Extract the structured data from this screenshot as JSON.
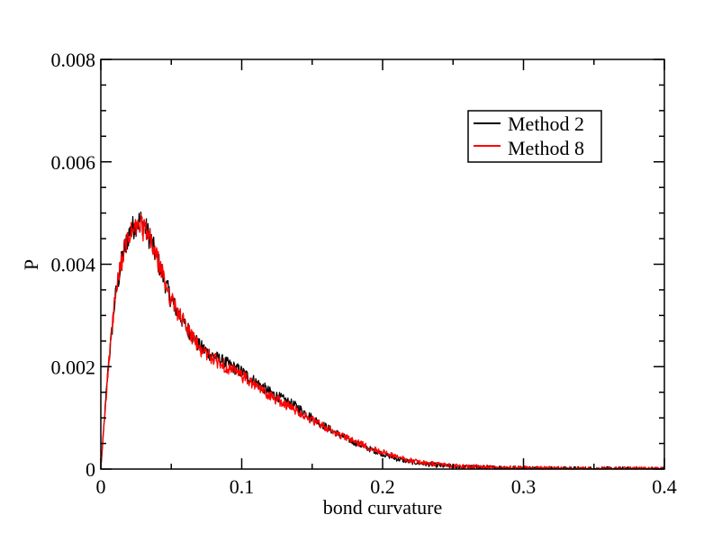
{
  "chart_data": {
    "type": "line",
    "xlabel": "bond curvature",
    "ylabel": "P",
    "xlim": [
      0,
      0.4
    ],
    "ylim": [
      0,
      0.008
    ],
    "x_ticks": [
      "0",
      "0.1",
      "0.2",
      "0.3",
      "0.4"
    ],
    "x_tick_values": [
      0,
      0.1,
      0.2,
      0.3,
      0.4
    ],
    "y_ticks": [
      "0",
      "0.002",
      "0.004",
      "0.006",
      "0.008"
    ],
    "y_tick_values": [
      0,
      0.002,
      0.004,
      0.006,
      0.008
    ],
    "legend_position": "top-right",
    "grid": false,
    "series": [
      {
        "name": "Method 2",
        "color": "#000000",
        "x": [
          0,
          0.005,
          0.01,
          0.015,
          0.02,
          0.025,
          0.028,
          0.03,
          0.035,
          0.04,
          0.045,
          0.05,
          0.06,
          0.07,
          0.08,
          0.09,
          0.1,
          0.11,
          0.12,
          0.13,
          0.14,
          0.15,
          0.16,
          0.17,
          0.18,
          0.19,
          0.2,
          0.21,
          0.22,
          0.23,
          0.24,
          0.25,
          0.26,
          0.28,
          0.3,
          0.32,
          0.34,
          0.36,
          0.38,
          0.4
        ],
        "y": [
          0,
          0.0019,
          0.0033,
          0.0041,
          0.0046,
          0.0048,
          0.00485,
          0.0048,
          0.0045,
          0.0041,
          0.0037,
          0.0033,
          0.0028,
          0.0024,
          0.0022,
          0.00205,
          0.0019,
          0.0017,
          0.0015,
          0.00135,
          0.0012,
          0.001,
          0.00082,
          0.00066,
          0.00052,
          0.0004,
          0.0003,
          0.0002,
          0.00014,
          0.0001,
          7e-05,
          5e-05,
          4e-05,
          3e-05,
          2e-05,
          1.2e-05,
          8e-06,
          5e-06,
          3e-06,
          2e-06
        ]
      },
      {
        "name": "Method 8",
        "color": "#ff0000",
        "x": [
          0,
          0.005,
          0.01,
          0.015,
          0.02,
          0.025,
          0.028,
          0.03,
          0.035,
          0.04,
          0.045,
          0.05,
          0.06,
          0.07,
          0.08,
          0.09,
          0.1,
          0.11,
          0.12,
          0.13,
          0.14,
          0.15,
          0.16,
          0.17,
          0.18,
          0.19,
          0.2,
          0.21,
          0.22,
          0.23,
          0.24,
          0.25,
          0.26,
          0.28,
          0.3,
          0.32,
          0.34,
          0.36,
          0.38,
          0.4
        ],
        "y": [
          0,
          0.0019,
          0.0033,
          0.0041,
          0.00455,
          0.0047,
          0.00475,
          0.0047,
          0.00448,
          0.0041,
          0.0037,
          0.0033,
          0.0028,
          0.00235,
          0.00215,
          0.00198,
          0.00182,
          0.00162,
          0.00143,
          0.00128,
          0.00113,
          0.00095,
          0.0008,
          0.00066,
          0.00054,
          0.00043,
          0.00033,
          0.00024,
          0.00017,
          0.00012,
          9e-05,
          6e-05,
          5e-05,
          3e-05,
          2e-05,
          1.3e-05,
          9e-06,
          6e-06,
          4e-06,
          2e-06
        ]
      }
    ]
  }
}
